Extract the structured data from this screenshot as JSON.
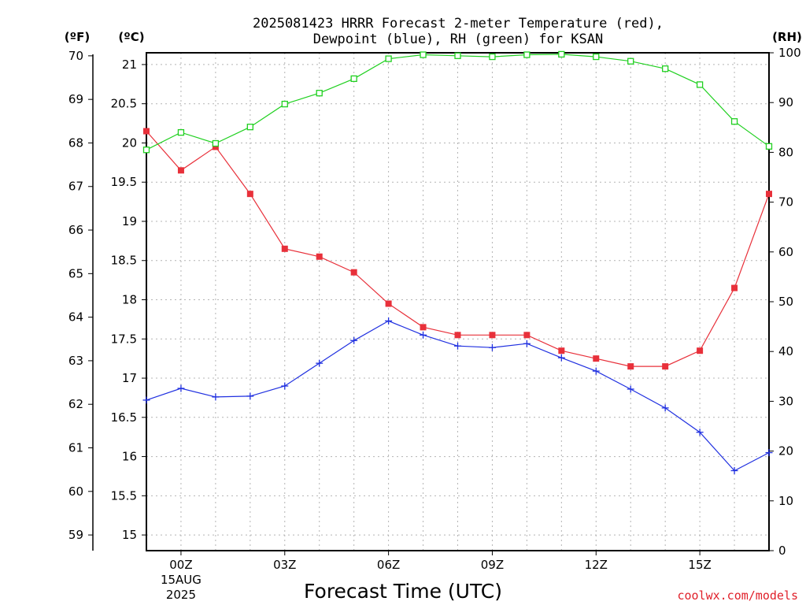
{
  "chart_data": {
    "type": "line",
    "title": "2025081423 HRRR Forecast 2-meter Temperature (red),",
    "subtitle": "Dewpoint (blue), RH (green) for KSAN",
    "xlabel": "Forecast Time (UTC)",
    "credit": "coolwx.com/models",
    "axis_units": {
      "fahrenheit": "(ºF)",
      "celsius": "(ºC)",
      "rh": "(RH)"
    },
    "x_hours": [
      -1,
      0,
      1,
      2,
      3,
      4,
      5,
      6,
      7,
      8,
      9,
      10,
      11,
      12,
      13,
      14,
      15,
      16,
      17
    ],
    "x_ticks": [
      {
        "hour": 0,
        "label": "00Z",
        "sub1": "15AUG",
        "sub2": "2025"
      },
      {
        "hour": 3,
        "label": "03Z"
      },
      {
        "hour": 6,
        "label": "06Z"
      },
      {
        "hour": 9,
        "label": "09Z"
      },
      {
        "hour": 12,
        "label": "12Z"
      },
      {
        "hour": 15,
        "label": "15Z"
      }
    ],
    "celsius_ticks": [
      "15",
      "15.5",
      "16",
      "16.5",
      "17",
      "17.5",
      "18",
      "18.5",
      "19",
      "19.5",
      "20",
      "20.5",
      "21"
    ],
    "fahrenheit_ticks": [
      "59",
      "60",
      "61",
      "62",
      "63",
      "64",
      "65",
      "66",
      "67",
      "68",
      "69",
      "70"
    ],
    "rh_ticks": [
      "0",
      "10",
      "20",
      "30",
      "40",
      "50",
      "60",
      "70",
      "80",
      "90",
      "100"
    ],
    "ylim_celsius": [
      14.8,
      21.15
    ],
    "ylim_rh": [
      0,
      100
    ],
    "grid": true,
    "series": [
      {
        "name": "Temperature (red)",
        "unit": "C",
        "color": "#e8303a",
        "marker": "filled-square",
        "values": [
          20.15,
          19.65,
          19.95,
          19.35,
          18.65,
          18.55,
          18.35,
          17.95,
          17.65,
          17.55,
          17.55,
          17.55,
          17.35,
          17.25,
          17.15,
          17.15,
          17.35,
          18.15,
          19.35
        ]
      },
      {
        "name": "Dewpoint (blue)",
        "unit": "C",
        "color": "#2030e0",
        "marker": "plus",
        "values": [
          16.72,
          16.87,
          16.76,
          16.77,
          16.9,
          17.19,
          17.48,
          17.73,
          17.55,
          17.41,
          17.39,
          17.44,
          17.26,
          17.09,
          16.86,
          16.62,
          16.31,
          15.82,
          16.05
        ]
      },
      {
        "name": "RH (green)",
        "unit": "%",
        "color": "#20d020",
        "marker": "open-square",
        "values": [
          80.5,
          84.0,
          81.8,
          85.1,
          89.7,
          91.9,
          94.8,
          98.8,
          99.6,
          99.4,
          99.2,
          99.6,
          99.7,
          99.2,
          98.3,
          96.8,
          93.6,
          86.2,
          81.2
        ]
      }
    ]
  }
}
